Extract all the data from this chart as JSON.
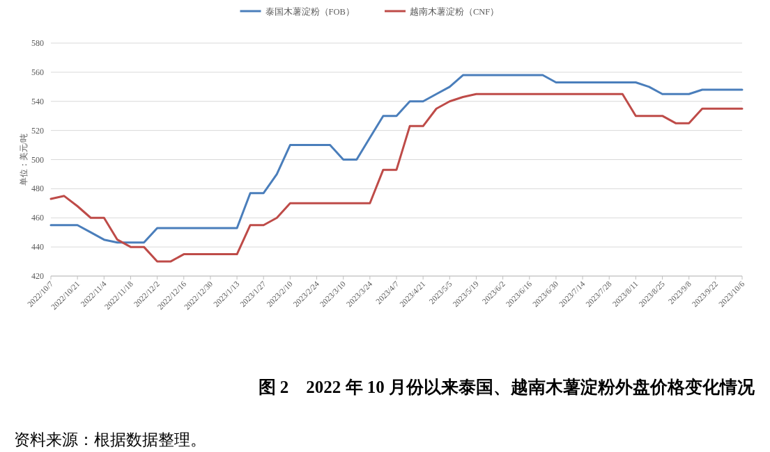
{
  "chart_data": {
    "type": "line",
    "title": "图 2　2022 年 10 月份以来泰国、越南木薯淀粉外盘价格变化情况",
    "ylabel": "单位：美元/吨",
    "annotations": [
      "资料来源：根据数据整理。"
    ],
    "categories": [
      "2022/10/7",
      null,
      "2022/10/21",
      null,
      "2022/11/4",
      null,
      "2022/11/18",
      null,
      "2022/12/2",
      null,
      "2022/12/16",
      null,
      "2022/12/30",
      null,
      "2023/1/13",
      null,
      "2023/1/27",
      null,
      "2023/2/10",
      null,
      "2023/2/24",
      null,
      "2023/3/10",
      null,
      "2023/3/24",
      null,
      "2023/4/7",
      null,
      "2023/4/21",
      null,
      "2023/5/5",
      null,
      "2023/5/19",
      null,
      "2023/6/2",
      null,
      "2023/6/16",
      null,
      "2023/6/30",
      null,
      "2023/7/14",
      null,
      "2023/7/28",
      null,
      "2023/8/11",
      null,
      "2023/8/25",
      null,
      "2023/9/8",
      null,
      "2023/9/22",
      null,
      "2023/10/6"
    ],
    "series": [
      {
        "name": "泰国木薯淀粉（FOB）",
        "color": "#4a7ebb",
        "values": [
          455,
          455,
          455,
          450,
          445,
          443,
          443,
          443,
          453,
          453,
          453,
          453,
          453,
          453,
          453,
          477,
          477,
          490,
          510,
          510,
          510,
          510,
          500,
          500,
          515,
          530,
          530,
          540,
          540,
          545,
          550,
          558,
          558,
          558,
          558,
          558,
          558,
          558,
          553,
          553,
          553,
          553,
          553,
          553,
          553,
          550,
          545,
          545,
          545,
          548,
          548,
          548,
          548
        ]
      },
      {
        "name": "越南木薯淀粉（CNF）",
        "color": "#be4b48",
        "values": [
          473,
          475,
          468,
          460,
          460,
          445,
          440,
          440,
          430,
          430,
          435,
          435,
          435,
          435,
          435,
          455,
          455,
          460,
          470,
          470,
          470,
          470,
          470,
          470,
          470,
          493,
          493,
          523,
          523,
          535,
          540,
          543,
          545,
          545,
          545,
          545,
          545,
          545,
          545,
          545,
          545,
          545,
          545,
          545,
          530,
          530,
          530,
          525,
          525,
          535,
          535,
          535,
          535
        ]
      }
    ],
    "ylim": [
      420,
      580
    ],
    "yticks": [
      420,
      440,
      460,
      480,
      500,
      520,
      540,
      560,
      580
    ],
    "grid": "y",
    "legend": "top",
    "marker": "none",
    "line_style": "solid"
  }
}
